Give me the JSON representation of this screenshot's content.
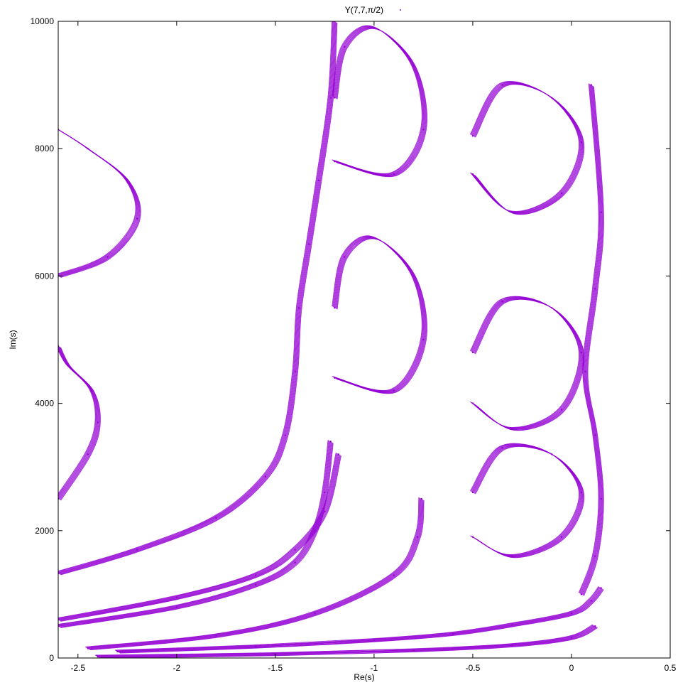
{
  "chart_data": {
    "type": "scatter",
    "title": "",
    "xlabel": "Re(s)",
    "ylabel": "Im(s)",
    "xlim": [
      -2.6,
      0.5
    ],
    "ylim": [
      0,
      10000
    ],
    "xticks": [
      "-2.5",
      "-2",
      "-1.5",
      "-1",
      "-0.5",
      "0",
      "0.5"
    ],
    "yticks": [
      "0",
      "2000",
      "4000",
      "6000",
      "8000",
      "10000"
    ],
    "grid": false,
    "legend_position": "top-center",
    "series": [
      {
        "name": "Y(7,7,π/2)",
        "color": "#9400d3",
        "marker": "dot",
        "approx_traces": [
          {
            "x": [
              -2.6,
              -2.2,
              -1.8,
              -1.55,
              -1.45,
              -1.4,
              -1.38,
              -1.33,
              -1.28,
              -1.22,
              -1.2
            ],
            "y": [
              1330,
              1700,
              2200,
              2850,
              3500,
              4500,
              5500,
              6500,
              7500,
              8800,
              10000
            ]
          },
          {
            "x": [
              -2.6,
              -2.0,
              -1.6,
              -1.4,
              -1.3,
              -1.25,
              -1.22
            ],
            "y": [
              500,
              800,
              1150,
              1500,
              2000,
              2600,
              3400
            ]
          },
          {
            "x": [
              -2.6,
              -2.0,
              -1.6,
              -1.4,
              -1.25,
              -1.18
            ],
            "y": [
              600,
              950,
              1300,
              1700,
              2300,
              3200
            ]
          },
          {
            "x": [
              -2.45,
              -1.8,
              -1.3,
              -0.9,
              -0.78,
              -0.76
            ],
            "y": [
              150,
              350,
              700,
              1300,
              1900,
              2500
            ]
          },
          {
            "x": [
              -2.3,
              -1.6,
              -1.0,
              -0.6,
              -0.3,
              0.0,
              0.1,
              0.15
            ],
            "y": [
              100,
              180,
              280,
              380,
              520,
              700,
              900,
              1100
            ]
          },
          {
            "x": [
              -2.4,
              -1.5,
              -0.8,
              -0.3,
              0.0,
              0.12
            ],
            "y": [
              20,
              60,
              120,
              200,
              320,
              500
            ]
          },
          {
            "x": [
              -2.6,
              -2.45,
              -2.4,
              -2.43,
              -2.55,
              -2.6
            ],
            "y": [
              2500,
              3200,
              3700,
              4200,
              4600,
              4900
            ]
          },
          {
            "x": [
              -2.6,
              -2.35,
              -2.2,
              -2.25,
              -2.45,
              -2.6
            ],
            "y": [
              6000,
              6300,
              6900,
              7500,
              8000,
              8300
            ]
          },
          {
            "x": [
              -1.2,
              -0.9,
              -0.75,
              -0.8,
              -1.0,
              -1.15,
              -1.2
            ],
            "y": [
              4400,
              4200,
              5000,
              6000,
              6600,
              6300,
              5500
            ]
          },
          {
            "x": [
              -1.2,
              -0.9,
              -0.75,
              -0.8,
              -1.0,
              -1.15,
              -1.2
            ],
            "y": [
              7800,
              7600,
              8300,
              9300,
              9900,
              9600,
              8800
            ]
          },
          {
            "x": [
              -0.5,
              -0.3,
              -0.05,
              0.05,
              -0.1,
              -0.35,
              -0.5
            ],
            "y": [
              4000,
              3600,
              3900,
              4800,
              5500,
              5600,
              4800
            ]
          },
          {
            "x": [
              -0.5,
              -0.3,
              -0.05,
              0.05,
              -0.1,
              -0.35,
              -0.5
            ],
            "y": [
              7600,
              7000,
              7300,
              8100,
              8800,
              9000,
              8200
            ]
          },
          {
            "x": [
              -0.5,
              -0.3,
              -0.05,
              0.05,
              -0.1,
              -0.35,
              -0.5
            ],
            "y": [
              1900,
              1600,
              1900,
              2600,
              3200,
              3300,
              2600
            ]
          },
          {
            "x": [
              0.05,
              0.12,
              0.15,
              0.12,
              0.07,
              0.12,
              0.15,
              0.1
            ],
            "y": [
              1000,
              1600,
              2500,
              3500,
              4500,
              5800,
              7000,
              9000
            ]
          }
        ]
      }
    ]
  }
}
